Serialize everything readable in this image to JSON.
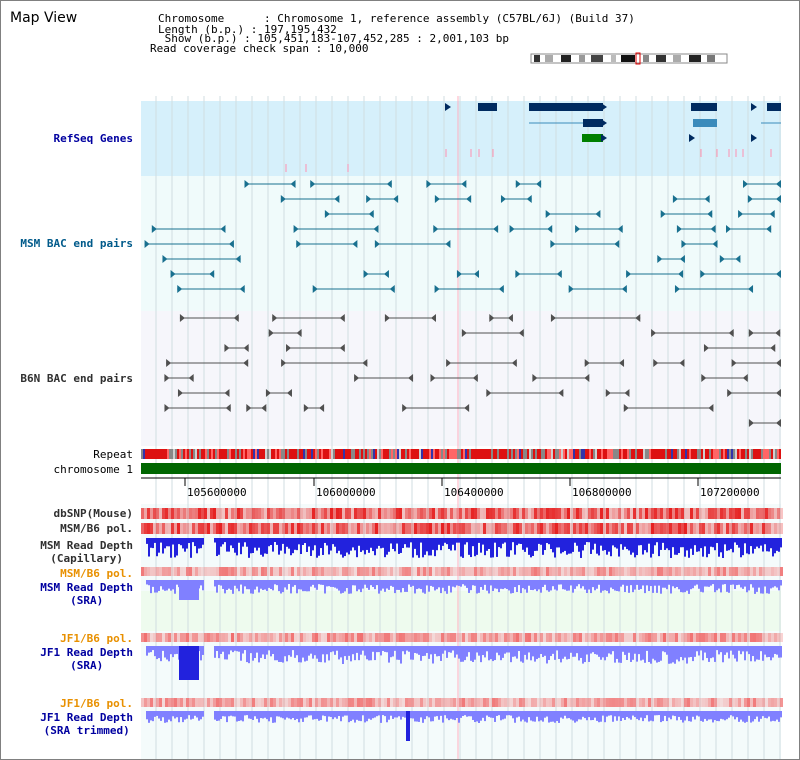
{
  "view_title": "Map View",
  "info": {
    "chromosome_line": "Chromosome      : Chromosome 1, reference assembly (C57BL/6J) (Build 37)",
    "length_line": "Length (b.p.) : 197,195,432",
    "show_line": " Show (b.p.) : 105,451,183-107,452,285 : 2,001,103 bp",
    "coverage_line": "Read coverage check span : 10,000"
  },
  "tracks": {
    "refseq_genes": "RefSeq Genes",
    "msm_bac": "MSM BAC end pairs",
    "b6n_bac": "B6N BAC end pairs",
    "repeat": "Repeat",
    "chromosome": "chromosome 1",
    "dbsnp": "dbSNP(Mouse)",
    "msm_b6_pol": "MSM/B6 pol.",
    "msm_depth_cap_1": "MSM Read Depth",
    "msm_depth_cap_2": "(Capillary)",
    "msm_b6_pol_sra": "MSM/B6 pol.",
    "msm_depth_sra_1": "MSM Read Depth",
    "msm_depth_sra_2": "(SRA)",
    "jf1_b6_pol": "JF1/B6 pol.",
    "jf1_depth_1": "JF1 Read Depth",
    "jf1_depth_2": "(SRA)",
    "jf1_b6_pol_trim": "JF1/B6 pol.",
    "jf1_depth_trim_1": "JF1 Read Depth",
    "jf1_depth_trim_2": "(SRA trimmed)"
  },
  "axis_ticks": [
    "105600000",
    "106000000",
    "106400000",
    "106800000",
    "107200000"
  ],
  "colors": {
    "refseq_bg": "#d6f0fb",
    "track_bg": "#f0fbfb",
    "gene_dark": "#002b60",
    "gene_mid": "#3b8bbb",
    "gene_green": "#008000",
    "msm_bac": "#19708f",
    "b6n_bac": "#505050",
    "chromosome": "#006600",
    "depth_blue": "#2222dd",
    "depth_light": "#8080ff",
    "pol_red": "#ee3333"
  }
}
